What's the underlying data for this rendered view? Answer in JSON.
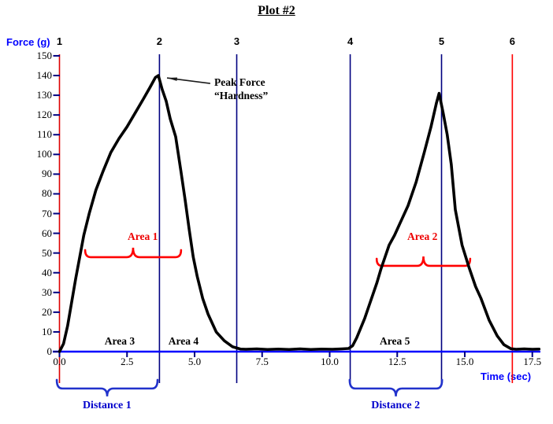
{
  "chart_data": {
    "type": "line",
    "title": "Plot #2",
    "xlabel": "Time (sec)",
    "ylabel": "Force (g)",
    "xlim": [
      0,
      17.5
    ],
    "ylim": [
      0,
      150
    ],
    "x_ticks": [
      "0.0",
      "2.5",
      "5.0",
      "7.5",
      "10.0",
      "12.5",
      "15.0",
      "17.5"
    ],
    "y_ticks": [
      0,
      10,
      20,
      30,
      40,
      50,
      60,
      70,
      80,
      90,
      100,
      110,
      120,
      130,
      140,
      150
    ],
    "series": [
      {
        "name": "force-curve",
        "color": "#000000",
        "x": [
          0,
          0.15,
          0.3,
          0.45,
          0.6,
          0.75,
          0.9,
          1.1,
          1.35,
          1.6,
          1.9,
          2.2,
          2.5,
          2.8,
          3.1,
          3.35,
          3.55,
          3.66,
          3.8,
          3.95,
          4.1,
          4.3,
          4.5,
          4.65,
          4.8,
          4.95,
          5.1,
          5.3,
          5.5,
          5.8,
          6.1,
          6.4,
          6.7,
          6.9,
          7.3,
          7.7,
          8.1,
          8.5,
          8.9,
          9.3,
          9.7,
          10.1,
          10.45,
          10.7,
          10.85,
          11.0,
          11.15,
          11.3,
          11.45,
          11.6,
          11.75,
          11.9,
          12.05,
          12.2,
          12.4,
          12.6,
          12.9,
          13.2,
          13.5,
          13.75,
          13.95,
          14.05,
          14.2,
          14.35,
          14.5,
          14.65,
          14.9,
          15.15,
          15.4,
          15.6,
          15.9,
          16.2,
          16.45,
          16.7,
          16.9,
          17.2,
          17.5,
          17.75
        ],
        "y": [
          0,
          4,
          13,
          25,
          37,
          48,
          59,
          70,
          82,
          91,
          101,
          108,
          114,
          121,
          128,
          134,
          139,
          140,
          133,
          127,
          118,
          109,
          91,
          77,
          62,
          48,
          38,
          27,
          19,
          10,
          5.5,
          2.5,
          1.3,
          1.2,
          1.4,
          1.1,
          1.3,
          1.1,
          1.4,
          1.1,
          1.3,
          1.2,
          1.4,
          1.6,
          3,
          7,
          12,
          17,
          23,
          29,
          35,
          42,
          48,
          54,
          59,
          65,
          74,
          86,
          101,
          114,
          126,
          131,
          121,
          110,
          95,
          72,
          54,
          43,
          33,
          27,
          16,
          8,
          3.5,
          1.5,
          1.2,
          1.4,
          1.2,
          1.3
        ]
      }
    ],
    "peaks": [
      {
        "name": "peak-1",
        "t": 3.66,
        "force": 140
      },
      {
        "name": "peak-2",
        "t": 14.05,
        "force": 131
      }
    ],
    "event_lines": [
      {
        "label": "1",
        "t": 0,
        "color": "#DD0000"
      },
      {
        "label": "2",
        "t": 3.7,
        "color": "#000080"
      },
      {
        "label": "3",
        "t": 6.56,
        "color": "#000080"
      },
      {
        "label": "4",
        "t": 10.76,
        "color": "#000080"
      },
      {
        "label": "5",
        "t": 14.14,
        "color": "#000080"
      },
      {
        "label": "6",
        "t": 16.76,
        "color": "#FF0000"
      }
    ],
    "peak_annotation": {
      "line1": "Peak Force",
      "line2": "“Hardness”",
      "text_t": 5.73,
      "text_f": 140,
      "arrow_from_t": 5.58,
      "arrow_from_f": 136,
      "arrow_to_t": 3.98,
      "arrow_to_f": 138.8
    },
    "area_labels": [
      {
        "text": "Area 1",
        "t": 3.08,
        "f": 58.2,
        "color": "#EE0000"
      },
      {
        "text": "Area 2",
        "t": 13.43,
        "f": 58.2,
        "color": "#EE0000"
      },
      {
        "text": "Area 3",
        "t": 2.23,
        "f": 5.2,
        "color": "#000000"
      },
      {
        "text": "Area 4",
        "t": 4.59,
        "f": 5.2,
        "color": "#000000"
      },
      {
        "text": "Area 5",
        "t": 12.41,
        "f": 5.2,
        "color": "#000000"
      }
    ],
    "distance_labels": [
      {
        "text": "Distance 1",
        "t": 1.76,
        "f": -27.5,
        "color": "#0000CC"
      },
      {
        "text": "Distance 2",
        "t": 12.44,
        "f": -27.5,
        "color": "#0000CC"
      }
    ],
    "braces": [
      {
        "name": "area-1-brace",
        "t1": 0.95,
        "t2": 4.5,
        "f": 47.9,
        "dir": "up",
        "color": "#FF0000"
      },
      {
        "name": "area-2-brace",
        "t1": 11.74,
        "t2": 15.2,
        "f": 43.5,
        "dir": "up",
        "color": "#FF0000"
      },
      {
        "name": "distance-1-brace",
        "t1": -0.1,
        "t2": 3.63,
        "f": -18.7,
        "dir": "down",
        "color": "#2233CC"
      },
      {
        "name": "distance-2-brace",
        "t1": 10.74,
        "t2": 14.16,
        "f": -18.7,
        "dir": "down",
        "color": "#2233CC"
      }
    ],
    "colors": {
      "x_axis": "#0000FF",
      "ticks": "#000080",
      "curve": "#000000",
      "arrow": "#1a1a1a"
    },
    "legend": "none",
    "grid": "off"
  }
}
